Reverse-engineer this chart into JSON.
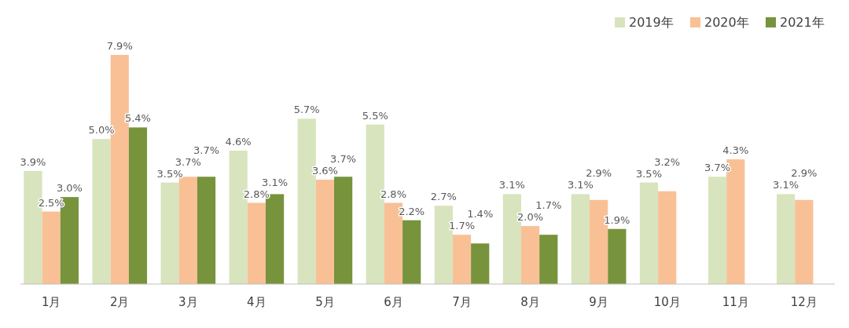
{
  "chart_data": {
    "type": "bar",
    "categories": [
      "1月",
      "2月",
      "3月",
      "4月",
      "5月",
      "6月",
      "7月",
      "8月",
      "9月",
      "10月",
      "11月",
      "12月"
    ],
    "series": [
      {
        "name": "2019年",
        "color": "#d7e4bd",
        "values": [
          3.9,
          5.0,
          3.5,
          4.6,
          5.7,
          5.5,
          2.7,
          3.1,
          3.1,
          3.5,
          3.7,
          3.1
        ],
        "value_labels": [
          "3.9%",
          "5.0%",
          "3.5%",
          "4.6%",
          "5.7%",
          "5.5%",
          "2.7%",
          "3.1%",
          "3.1%",
          "3.5%",
          "3.7%",
          "3.1%"
        ]
      },
      {
        "name": "2020年",
        "color": "#f9c096",
        "values": [
          2.5,
          7.9,
          3.7,
          2.8,
          3.6,
          2.8,
          1.7,
          2.0,
          2.9,
          3.2,
          4.3,
          2.9
        ],
        "value_labels": [
          "2.5%",
          "7.9%",
          "3.7%",
          "2.8%",
          "3.6%",
          "2.8%",
          "1.7%",
          "2.0%",
          "2.9%",
          "3.2%",
          "4.3%",
          "2.9%"
        ]
      },
      {
        "name": "2021年",
        "color": "#77933c",
        "values": [
          3.0,
          5.4,
          3.7,
          3.1,
          3.7,
          2.2,
          1.4,
          1.7,
          1.9,
          null,
          null,
          null
        ],
        "value_labels": [
          "3.0%",
          "5.4%",
          "3.7%",
          "3.1%",
          "3.7%",
          "2.2%",
          "1.4%",
          "1.7%",
          "1.9%",
          null,
          null,
          null
        ]
      }
    ],
    "legend": "top right"
  }
}
